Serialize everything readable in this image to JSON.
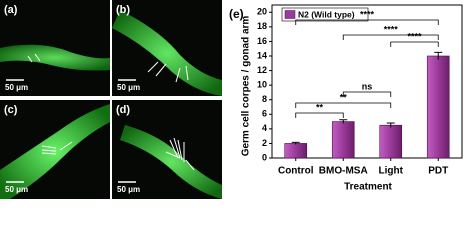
{
  "image_panels": [
    {
      "label": "(a)",
      "scale_bar": "50 μm"
    },
    {
      "label": "(b)",
      "scale_bar": "50 μm"
    },
    {
      "label": "(c)",
      "scale_bar": "50 μm"
    },
    {
      "label": "(d)",
      "scale_bar": "50 μm"
    }
  ],
  "chart_data": {
    "type": "bar",
    "panel_label": "(e)",
    "x_label": "Treatment",
    "y_label": "Germ cell corpes / gonad arm",
    "categories": [
      "Control",
      "BMO-MSA",
      "Light",
      "PDT"
    ],
    "series": [
      {
        "name": "N2 (Wild type)",
        "color": "#9a3a9a",
        "values": [
          2,
          5,
          4.5,
          14
        ],
        "errors": [
          0.15,
          0.25,
          0.3,
          0.5
        ]
      }
    ],
    "ylim": [
      0,
      21
    ],
    "yticks": [
      0,
      2,
      4,
      6,
      8,
      10,
      12,
      14,
      16,
      18,
      20
    ],
    "legend": "top-left",
    "annotations": [
      {
        "text": "**",
        "between": [
          "Control",
          "BMO-MSA"
        ]
      },
      {
        "text": "**",
        "between": [
          "Control",
          "Light"
        ]
      },
      {
        "text": "ns",
        "between": [
          "BMO-MSA",
          "Light"
        ]
      },
      {
        "text": "****",
        "between": [
          "Light",
          "PDT"
        ]
      },
      {
        "text": "****",
        "between": [
          "BMO-MSA",
          "PDT"
        ]
      },
      {
        "text": "****",
        "between": [
          "Control",
          "PDT"
        ]
      }
    ]
  }
}
